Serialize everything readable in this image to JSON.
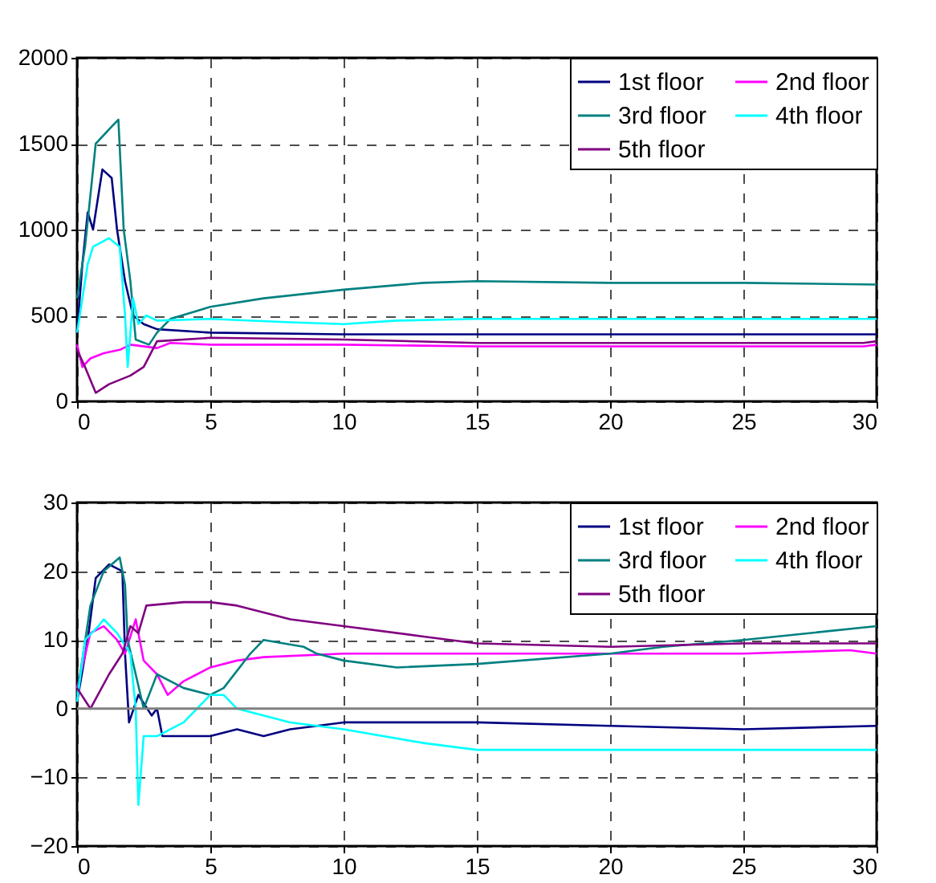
{
  "chart_data": [
    {
      "type": "line",
      "xlim": [
        0,
        30
      ],
      "xticks": [
        0,
        5,
        10,
        15,
        20,
        25,
        30
      ],
      "ylim": [
        0,
        2000
      ],
      "yticks": [
        0,
        500,
        1000,
        1500,
        2000
      ],
      "grid": true,
      "legend": "top right",
      "line_style": "solid",
      "series": [
        {
          "name": "1st floor",
          "color": "#000080",
          "x": [
            0,
            0.2,
            0.4,
            0.6,
            0.95,
            1.3,
            1.5,
            1.8,
            2.1,
            2.5,
            3,
            5,
            10,
            15,
            20,
            25,
            30
          ],
          "values": [
            400,
            800,
            1100,
            1000,
            1350,
            1300,
            1000,
            700,
            500,
            450,
            420,
            400,
            390,
            390,
            390,
            390,
            390
          ]
        },
        {
          "name": "2nd floor",
          "color": "#ff00ff",
          "x": [
            0,
            0.2,
            0.5,
            1,
            1.6,
            2,
            3,
            3.5,
            5,
            10,
            15,
            20,
            25,
            29.5,
            30
          ],
          "values": [
            330,
            200,
            250,
            280,
            300,
            330,
            310,
            340,
            330,
            330,
            320,
            320,
            320,
            320,
            330
          ]
        },
        {
          "name": "3rd floor",
          "color": "#008080",
          "x": [
            0,
            0.3,
            0.7,
            1.3,
            1.55,
            1.75,
            2,
            2.2,
            2.7,
            3,
            3.5,
            5,
            7,
            10,
            13,
            15,
            20,
            25,
            30
          ],
          "values": [
            600,
            900,
            1500,
            1600,
            1640,
            1000,
            700,
            360,
            330,
            400,
            480,
            550,
            600,
            650,
            690,
            700,
            690,
            690,
            680
          ]
        },
        {
          "name": "4th floor",
          "color": "#00ffff",
          "x": [
            0,
            0.4,
            0.6,
            1.2,
            1.6,
            1.8,
            1.9,
            2,
            2.1,
            2.3,
            2.6,
            3,
            5,
            8,
            10,
            12,
            15,
            20,
            25,
            30
          ],
          "values": [
            400,
            800,
            900,
            950,
            900,
            500,
            200,
            400,
            600,
            450,
            500,
            470,
            480,
            460,
            450,
            470,
            480,
            480,
            480,
            480
          ]
        },
        {
          "name": "5th floor",
          "color": "#800080",
          "x": [
            0,
            0.3,
            0.7,
            1.2,
            2,
            2.5,
            3,
            5,
            10,
            15,
            20,
            25,
            29.5,
            30
          ],
          "values": [
            300,
            200,
            50,
            100,
            150,
            200,
            350,
            370,
            360,
            340,
            340,
            340,
            340,
            350
          ]
        }
      ]
    },
    {
      "type": "line",
      "xlim": [
        0,
        30
      ],
      "xticks": [
        0,
        5,
        10,
        15,
        20,
        25,
        30
      ],
      "ylim": [
        -20,
        30
      ],
      "yticks": [
        -20,
        -10,
        0,
        10,
        20,
        30
      ],
      "grid": true,
      "legend": "top right",
      "line_style": "solid",
      "ref_lines": [
        {
          "axis": "y",
          "value": 0,
          "color": "#808080"
        }
      ],
      "series": [
        {
          "name": "1st floor",
          "color": "#000080",
          "x": [
            0,
            0.4,
            0.7,
            1.2,
            1.7,
            1.8,
            1.95,
            2.3,
            2.8,
            3,
            3.2,
            5,
            6,
            7,
            8,
            10,
            15,
            20,
            25,
            30
          ],
          "values": [
            1,
            10,
            19,
            21,
            20,
            8,
            -2,
            2,
            -1,
            0,
            -4,
            -4,
            -3,
            -4,
            -3,
            -2,
            -2,
            -2.5,
            -3,
            -2.5
          ]
        },
        {
          "name": "2nd floor",
          "color": "#ff00ff",
          "x": [
            0,
            0.5,
            1,
            1.5,
            1.8,
            2.2,
            2.5,
            3,
            3.4,
            4,
            4.5,
            5,
            6,
            7,
            10,
            15,
            25,
            29,
            30
          ],
          "values": [
            3,
            11,
            12,
            10,
            8,
            13,
            7,
            5,
            2,
            4,
            5,
            6,
            7,
            7.5,
            8,
            8,
            8,
            8.5,
            8
          ]
        },
        {
          "name": "3rd floor",
          "color": "#008080",
          "x": [
            0,
            0.5,
            1,
            1.6,
            1.8,
            1.9,
            2.2,
            2.5,
            2.8,
            3,
            4,
            5,
            5.5,
            6.5,
            7,
            8.5,
            9,
            10,
            12,
            15,
            20,
            22,
            25,
            30
          ],
          "values": [
            2,
            15,
            20,
            22,
            18,
            10,
            5,
            0,
            3,
            5,
            3,
            2,
            3,
            8,
            10,
            9,
            8,
            7,
            6,
            6.5,
            8,
            9,
            10,
            12
          ]
        },
        {
          "name": "4th floor",
          "color": "#00ffff",
          "x": [
            0,
            0.3,
            0.8,
            1,
            1.5,
            2,
            2.2,
            2.3,
            2.5,
            3,
            4,
            5,
            5.5,
            6,
            8,
            10,
            13,
            15,
            20,
            25,
            30
          ],
          "values": [
            1,
            10,
            12,
            13,
            11,
            8,
            0,
            -14,
            -4,
            -4,
            -2,
            2,
            2,
            0,
            -2,
            -3,
            -5,
            -6,
            -6,
            -6,
            -6
          ]
        },
        {
          "name": "5th floor",
          "color": "#800080",
          "x": [
            0,
            0.5,
            1.2,
            1.7,
            2,
            2.3,
            2.6,
            4,
            5,
            6,
            8,
            10,
            13,
            15,
            20,
            25,
            30
          ],
          "values": [
            3,
            0,
            5,
            8,
            12,
            11,
            15,
            15.5,
            15.5,
            15,
            13,
            12,
            10.5,
            9.5,
            9,
            9.5,
            9.5
          ]
        }
      ]
    }
  ]
}
